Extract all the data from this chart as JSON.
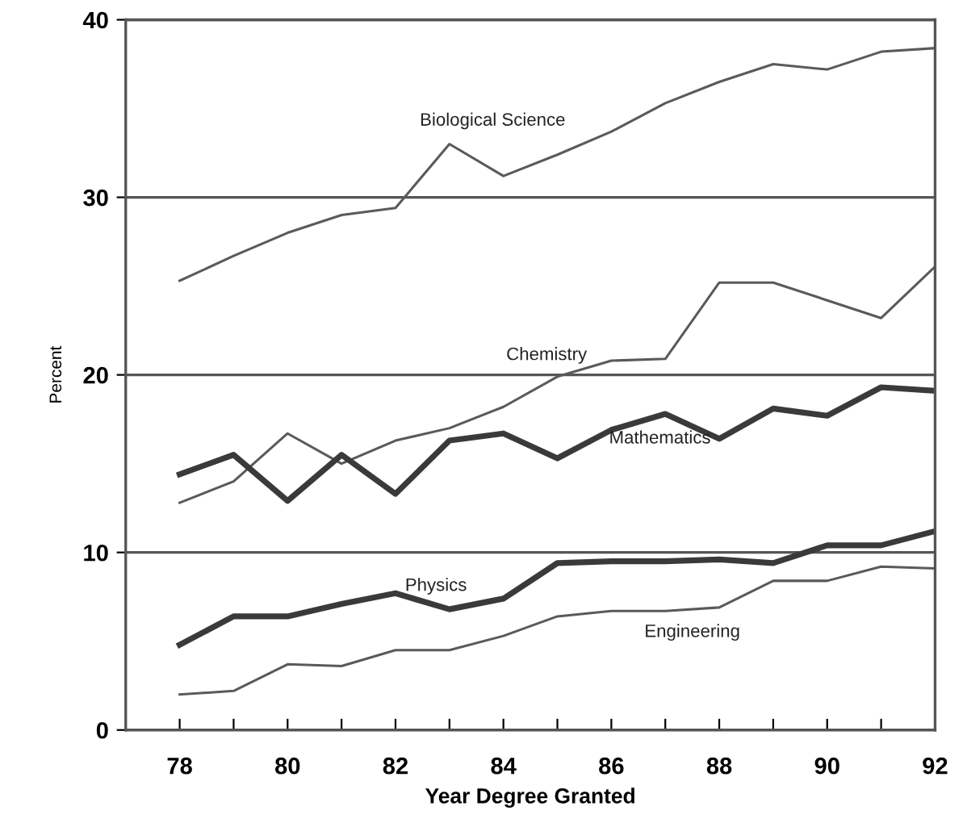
{
  "chart_data": {
    "type": "line",
    "xlabel": "Year Degree Granted",
    "ylabel": "Percent",
    "x": [
      78,
      79,
      80,
      81,
      82,
      83,
      84,
      85,
      86,
      87,
      88,
      89,
      90,
      91,
      92
    ],
    "series": [
      {
        "name": "Biological Science",
        "color": "#5a5a5a",
        "values": [
          25.3,
          26.7,
          28.0,
          29.0,
          29.4,
          33.0,
          31.2,
          32.4,
          33.7,
          35.3,
          36.5,
          37.5,
          37.2,
          38.2,
          38.4
        ]
      },
      {
        "name": "Chemistry",
        "color": "#5a5a5a",
        "values": [
          12.8,
          14.0,
          16.7,
          15.0,
          16.3,
          17.0,
          18.2,
          19.9,
          20.8,
          20.9,
          25.2,
          25.2,
          24.2,
          23.2,
          26.1
        ]
      },
      {
        "name": "Mathematics",
        "color": "#3a3a3a",
        "values": [
          14.4,
          15.5,
          12.9,
          15.5,
          13.3,
          16.3,
          16.7,
          15.3,
          16.9,
          17.8,
          16.4,
          18.1,
          17.7,
          19.3,
          19.1
        ]
      },
      {
        "name": "Physics",
        "color": "#3a3a3a",
        "values": [
          4.8,
          6.4,
          6.4,
          7.1,
          7.7,
          6.8,
          7.4,
          9.4,
          9.5,
          9.5,
          9.6,
          9.4,
          10.4,
          10.4,
          11.2
        ]
      },
      {
        "name": "Engineering",
        "color": "#5a5a5a",
        "values": [
          2.0,
          2.2,
          3.7,
          3.6,
          4.5,
          4.5,
          5.3,
          6.4,
          6.7,
          6.7,
          6.9,
          8.4,
          8.4,
          9.2,
          9.1
        ]
      }
    ],
    "xlim": [
      77,
      92
    ],
    "ylim": [
      0,
      40
    ],
    "xticks": [
      78,
      {
        "value": 79,
        "label": null
      },
      80,
      {
        "value": 81,
        "label": null
      },
      82,
      {
        "value": 83,
        "label": null
      },
      84,
      {
        "value": 85,
        "label": null
      },
      86,
      {
        "value": 87,
        "label": null
      },
      88,
      {
        "value": 89,
        "label": null
      },
      90,
      {
        "value": 91,
        "label": null
      },
      92
    ],
    "yticks": [
      0,
      10,
      20,
      30,
      40
    ],
    "grid": "y",
    "marker": "none",
    "line_style": "solid",
    "legend": false
  }
}
